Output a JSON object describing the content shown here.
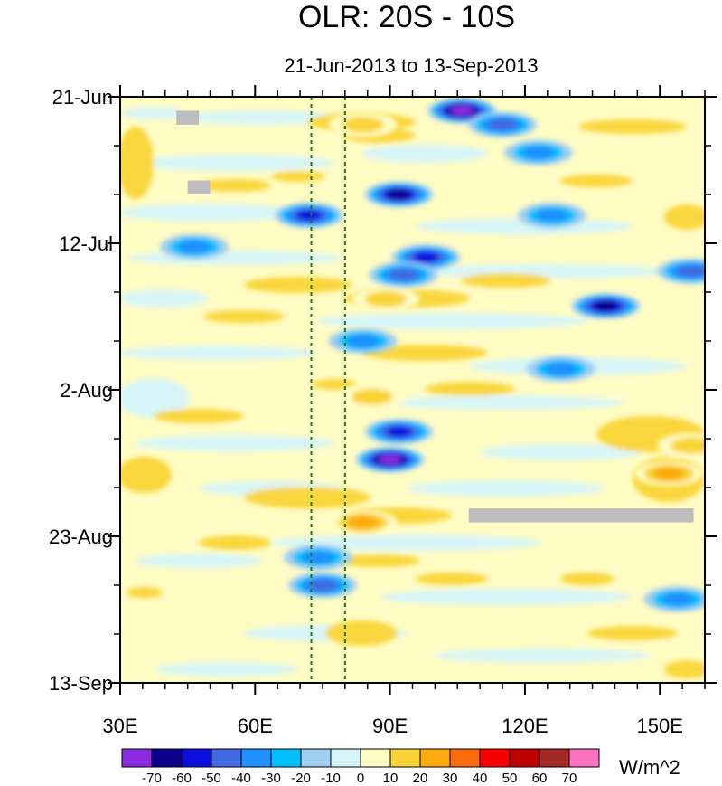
{
  "chart_data": {
    "type": "heatmap",
    "title": "OLR: 20S - 10S",
    "subtitle": "21-Jun-2013 to 13-Sep-2013",
    "xlabel": "",
    "ylabel": "",
    "x_range": [
      30,
      160
    ],
    "x_ticks": [
      {
        "value": 30,
        "label": "30E"
      },
      {
        "value": 60,
        "label": "60E"
      },
      {
        "value": 90,
        "label": "90E"
      },
      {
        "value": 120,
        "label": "120E"
      },
      {
        "value": 150,
        "label": "150E"
      }
    ],
    "y_range_days": [
      0,
      84
    ],
    "y_ticks": [
      {
        "value": 0,
        "label": "21-Jun"
      },
      {
        "value": 21,
        "label": "12-Jul"
      },
      {
        "value": 42,
        "label": "2-Aug"
      },
      {
        "value": 63,
        "label": "23-Aug"
      },
      {
        "value": 84,
        "label": "13-Sep"
      }
    ],
    "reference_lines_lon": [
      72.5,
      80
    ],
    "missing_data": [
      {
        "lon": [
          42.5,
          47.5
        ],
        "day": [
          2,
          4
        ]
      },
      {
        "lon": [
          45,
          50
        ],
        "day": [
          12,
          14
        ]
      },
      {
        "lon": [
          107.5,
          157.5
        ],
        "day": [
          59,
          61
        ]
      }
    ],
    "features": [
      {
        "lon": 46.5,
        "day": 21.5,
        "value": -30
      },
      {
        "lon": 72,
        "day": 17,
        "value": -50
      },
      {
        "lon": 92,
        "day": 14,
        "value": -60
      },
      {
        "lon": 106,
        "day": 2,
        "value": -70
      },
      {
        "lon": 115,
        "day": 4,
        "value": -40
      },
      {
        "lon": 123,
        "day": 8,
        "value": -30
      },
      {
        "lon": 126,
        "day": 17,
        "value": -30
      },
      {
        "lon": 98,
        "day": 23,
        "value": -50
      },
      {
        "lon": 93,
        "day": 25.5,
        "value": -40
      },
      {
        "lon": 138,
        "day": 30,
        "value": -60
      },
      {
        "lon": 157,
        "day": 25,
        "value": -40
      },
      {
        "lon": 84,
        "day": 35,
        "value": -30
      },
      {
        "lon": 128,
        "day": 39,
        "value": -30
      },
      {
        "lon": 92,
        "day": 48,
        "value": -50
      },
      {
        "lon": 90,
        "day": 52,
        "value": -70
      },
      {
        "lon": 75,
        "day": 70,
        "value": -40
      },
      {
        "lon": 74,
        "day": 66,
        "value": -30
      },
      {
        "lon": 154,
        "day": 72,
        "value": -30
      },
      {
        "lon": 157,
        "day": 50,
        "value": 20
      },
      {
        "lon": 152,
        "day": 54,
        "value": 30
      },
      {
        "lon": 84,
        "day": 61,
        "value": 30
      },
      {
        "lon": 89,
        "day": 29,
        "value": 20
      },
      {
        "lon": 84,
        "day": 4,
        "value": 20
      },
      {
        "lon": 86,
        "day": 43,
        "value": 20
      }
    ],
    "colorbar": {
      "unit": "W/m^2",
      "levels": [
        "-70",
        "-60",
        "-50",
        "-40",
        "-30",
        "-20",
        "-10",
        "0",
        "10",
        "20",
        "30",
        "40",
        "50",
        "60",
        "70"
      ],
      "colors": [
        "#8a2be2",
        "#0b008b",
        "#0b0ee0",
        "#4169e1",
        "#1e90ff",
        "#00bfff",
        "#a0cef0",
        "#d6f5fa",
        "#fffcc4",
        "#f9d436",
        "#fbac0c",
        "#fb6a0a",
        "#f90000",
        "#bf0000",
        "#a22828",
        "#fb6fc0"
      ]
    }
  }
}
